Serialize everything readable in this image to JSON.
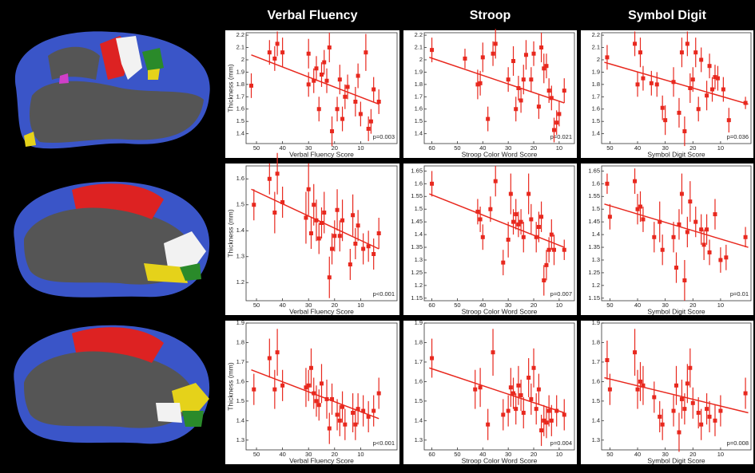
{
  "chart_data": [
    {
      "type": "scatter",
      "title": "Verbal Fluency",
      "xlabel": "Verbal Fluency Score",
      "ylabel": "Thickness (mm)",
      "color": "#e8281e",
      "x": [
        52,
        45,
        43,
        42,
        40,
        30,
        30,
        28,
        27,
        26,
        25,
        24,
        23,
        22,
        21,
        19,
        18,
        17,
        16,
        15,
        12,
        11,
        10,
        8,
        7,
        6,
        5,
        3
      ],
      "values": [
        1.79,
        2.06,
        2.01,
        2.13,
        2.06,
        2.05,
        1.8,
        1.83,
        1.93,
        1.6,
        1.88,
        1.98,
        1.83,
        2.1,
        1.42,
        1.6,
        1.84,
        1.52,
        1.7,
        1.78,
        1.66,
        1.87,
        1.56,
        2.06,
        1.44,
        1.5,
        1.76,
        1.66
      ],
      "errors": [
        0.1,
        0.1,
        0.1,
        0.1,
        0.12,
        0.12,
        0.1,
        0.1,
        0.1,
        0.1,
        0.1,
        0.1,
        0.1,
        0.12,
        0.12,
        0.1,
        0.12,
        0.1,
        0.1,
        0.1,
        0.12,
        0.1,
        0.1,
        0.15,
        0.1,
        0.1,
        0.1,
        0.1
      ],
      "trend": {
        "x": [
          52,
          3
        ],
        "y": [
          2.04,
          1.64
        ]
      },
      "annotation": "p=0.003",
      "xlim": [
        54,
        -4
      ],
      "ylim": [
        1.32,
        2.22
      ],
      "xticks": [
        50,
        40,
        30,
        20,
        10
      ],
      "yticks": [
        1.4,
        1.5,
        1.6,
        1.7,
        1.8,
        1.9,
        2,
        2.1,
        2.2
      ]
    },
    {
      "type": "scatter",
      "title": "Stroop",
      "xlabel": "Stroop Color Word Score",
      "color": "#e8281e",
      "x": [
        60,
        47,
        42,
        41,
        40,
        38,
        36,
        35,
        30,
        28,
        27,
        26,
        25,
        24,
        23,
        21,
        20,
        18,
        17,
        16,
        15,
        14,
        13,
        12,
        11,
        10,
        8
      ],
      "values": [
        2.08,
        2.01,
        1.8,
        1.81,
        2.02,
        1.52,
        2.05,
        2.13,
        1.84,
        1.99,
        1.6,
        1.77,
        1.67,
        1.84,
        2.04,
        1.84,
        2.05,
        1.62,
        2.1,
        1.93,
        1.95,
        1.75,
        1.69,
        1.43,
        1.49,
        1.56,
        1.75
      ],
      "errors": [
        0.1,
        0.08,
        0.12,
        0.1,
        0.12,
        0.1,
        0.1,
        0.12,
        0.1,
        0.12,
        0.1,
        0.1,
        0.1,
        0.12,
        0.12,
        0.1,
        0.1,
        0.1,
        0.12,
        0.12,
        0.1,
        0.1,
        0.1,
        0.1,
        0.1,
        0.1,
        0.1
      ],
      "trend": {
        "x": [
          61,
          8
        ],
        "y": [
          2.02,
          1.65
        ]
      },
      "annotation": "p=0.021",
      "xlim": [
        63,
        4
      ],
      "ylim": [
        1.32,
        2.22
      ],
      "xticks": [
        60,
        50,
        40,
        30,
        20,
        10
      ],
      "yticks": [
        1.4,
        1.5,
        1.6,
        1.7,
        1.8,
        1.9,
        2,
        2.1,
        2.2
      ]
    },
    {
      "type": "scatter",
      "title": "Symbol Digit",
      "xlabel": "Symbol Digit Score",
      "color": "#e8281e",
      "x": [
        51,
        41,
        40,
        39,
        38,
        35,
        33,
        31,
        30,
        27,
        25,
        24,
        23,
        22,
        21,
        20,
        19,
        18,
        17,
        15,
        14,
        13,
        12,
        11,
        9,
        7,
        1
      ],
      "values": [
        2.02,
        2.13,
        1.8,
        2.06,
        1.85,
        1.81,
        1.8,
        1.61,
        1.51,
        1.82,
        1.57,
        2.06,
        1.42,
        2.13,
        1.77,
        1.84,
        2.06,
        1.6,
        2.0,
        1.71,
        1.95,
        1.76,
        1.86,
        1.85,
        1.76,
        1.51,
        1.65
      ],
      "errors": [
        0.1,
        0.1,
        0.1,
        0.12,
        0.1,
        0.1,
        0.1,
        0.1,
        0.12,
        0.12,
        0.12,
        0.12,
        0.12,
        0.1,
        0.12,
        0.1,
        0.12,
        0.1,
        0.1,
        0.12,
        0.1,
        0.1,
        0.1,
        0.1,
        0.1,
        0.1,
        0.05
      ],
      "trend": {
        "x": [
          52,
          0
        ],
        "y": [
          1.98,
          1.64
        ]
      },
      "annotation": "p=0.036",
      "xlim": [
        53,
        -1
      ],
      "ylim": [
        1.32,
        2.22
      ],
      "xticks": [
        50,
        40,
        30,
        20,
        10
      ],
      "yticks": [
        1.4,
        1.5,
        1.6,
        1.7,
        1.8,
        1.9,
        2,
        2.1,
        2.2
      ]
    },
    {
      "type": "scatter",
      "xlabel": "Verbal Fluency Score",
      "ylabel": "Thickness (mm)",
      "color": "#e8281e",
      "x": [
        51,
        45,
        43,
        42,
        40,
        31,
        30,
        29,
        28,
        27,
        26,
        25,
        24,
        22,
        21,
        20,
        19,
        18,
        17,
        14,
        13,
        12,
        11,
        9,
        7,
        5,
        3
      ],
      "values": [
        1.5,
        1.6,
        1.47,
        1.62,
        1.51,
        1.45,
        1.56,
        1.39,
        1.5,
        1.44,
        1.37,
        1.43,
        1.47,
        1.22,
        1.33,
        1.38,
        1.48,
        1.38,
        1.44,
        1.27,
        1.46,
        1.35,
        1.42,
        1.33,
        1.34,
        1.31,
        1.39
      ],
      "errors": [
        0.06,
        0.06,
        0.08,
        0.08,
        0.06,
        0.1,
        0.1,
        0.06,
        0.08,
        0.08,
        0.06,
        0.06,
        0.08,
        0.08,
        0.06,
        0.06,
        0.08,
        0.06,
        0.08,
        0.06,
        0.08,
        0.06,
        0.06,
        0.06,
        0.06,
        0.06,
        0.06
      ],
      "trend": {
        "x": [
          52,
          3
        ],
        "y": [
          1.56,
          1.33
        ]
      },
      "annotation": "p<0.001",
      "xlim": [
        54,
        -4
      ],
      "ylim": [
        1.13,
        1.65
      ],
      "xticks": [
        50,
        40,
        30,
        20,
        10
      ],
      "yticks": [
        1.2,
        1.3,
        1.4,
        1.5,
        1.6
      ]
    },
    {
      "type": "scatter",
      "xlabel": "Stroop Color Word Score",
      "color": "#e8281e",
      "x": [
        60,
        42,
        41,
        40,
        37,
        35,
        32,
        30,
        29,
        28,
        27,
        26,
        25,
        24,
        22,
        21,
        19,
        18,
        17,
        16,
        15,
        14,
        13,
        12,
        8
      ],
      "values": [
        1.6,
        1.49,
        1.46,
        1.39,
        1.5,
        1.61,
        1.29,
        1.38,
        1.56,
        1.45,
        1.48,
        1.44,
        1.45,
        1.39,
        1.56,
        1.46,
        1.39,
        1.43,
        1.47,
        1.22,
        1.28,
        1.34,
        1.4,
        1.34,
        1.34
      ],
      "errors": [
        0.05,
        0.05,
        0.05,
        0.05,
        0.05,
        0.06,
        0.05,
        0.07,
        0.08,
        0.05,
        0.06,
        0.05,
        0.05,
        0.06,
        0.08,
        0.06,
        0.06,
        0.06,
        0.06,
        0.06,
        0.06,
        0.05,
        0.06,
        0.06,
        0.04
      ],
      "trend": {
        "x": [
          61,
          8
        ],
        "y": [
          1.56,
          1.35
        ]
      },
      "annotation": "p=0.007",
      "xlim": [
        63,
        4
      ],
      "ylim": [
        1.14,
        1.67
      ],
      "xticks": [
        60,
        50,
        40,
        30,
        20,
        10
      ],
      "yticks": [
        1.15,
        1.2,
        1.25,
        1.3,
        1.35,
        1.4,
        1.45,
        1.5,
        1.55,
        1.6,
        1.65
      ]
    },
    {
      "type": "scatter",
      "xlabel": "Symbol Digit Score",
      "color": "#e8281e",
      "x": [
        51,
        50,
        41,
        40,
        39,
        38,
        34,
        32,
        31,
        27,
        26,
        25,
        24,
        23,
        22,
        21,
        19,
        17,
        16,
        15,
        14,
        12,
        10,
        8,
        1
      ],
      "values": [
        1.6,
        1.47,
        1.61,
        1.5,
        1.51,
        1.46,
        1.39,
        1.45,
        1.34,
        1.39,
        1.27,
        1.44,
        1.56,
        1.22,
        1.41,
        1.53,
        1.45,
        1.42,
        1.36,
        1.42,
        1.33,
        1.48,
        1.3,
        1.31,
        1.39
      ],
      "errors": [
        0.04,
        0.05,
        0.05,
        0.06,
        0.06,
        0.05,
        0.06,
        0.08,
        0.06,
        0.06,
        0.06,
        0.06,
        0.08,
        0.08,
        0.06,
        0.08,
        0.06,
        0.06,
        0.06,
        0.06,
        0.05,
        0.06,
        0.05,
        0.05,
        0.04
      ],
      "trend": {
        "x": [
          52,
          0
        ],
        "y": [
          1.52,
          1.35
        ]
      },
      "annotation": "p=0.01",
      "xlim": [
        53,
        -1
      ],
      "ylim": [
        1.14,
        1.67
      ],
      "xticks": [
        50,
        40,
        30,
        20,
        10
      ],
      "yticks": [
        1.15,
        1.2,
        1.25,
        1.3,
        1.35,
        1.4,
        1.45,
        1.5,
        1.55,
        1.6,
        1.65
      ]
    },
    {
      "type": "scatter",
      "xlabel": "Verbal Fluency Score",
      "ylabel": "Thickness (mm)",
      "color": "#e8281e",
      "x": [
        51,
        45,
        43,
        42,
        40,
        31,
        30,
        29,
        28,
        27,
        26,
        25,
        23,
        22,
        21,
        19,
        18,
        17,
        16,
        13,
        12,
        11,
        9,
        7,
        5,
        3
      ],
      "values": [
        1.56,
        1.72,
        1.56,
        1.75,
        1.58,
        1.57,
        1.58,
        1.67,
        1.54,
        1.5,
        1.48,
        1.59,
        1.51,
        1.36,
        1.51,
        1.43,
        1.4,
        1.47,
        1.38,
        1.44,
        1.38,
        1.46,
        1.45,
        1.42,
        1.45,
        1.54
      ],
      "errors": [
        0.08,
        0.1,
        0.1,
        0.12,
        0.08,
        0.1,
        0.08,
        0.1,
        0.08,
        0.08,
        0.08,
        0.1,
        0.1,
        0.08,
        0.08,
        0.08,
        0.08,
        0.08,
        0.08,
        0.1,
        0.08,
        0.08,
        0.08,
        0.08,
        0.08,
        0.08
      ],
      "trend": {
        "x": [
          52,
          3
        ],
        "y": [
          1.66,
          1.41
        ]
      },
      "annotation": "p<0.001",
      "xlim": [
        54,
        -4
      ],
      "ylim": [
        1.25,
        1.9
      ],
      "xticks": [
        50,
        40,
        30,
        20,
        10
      ],
      "yticks": [
        1.3,
        1.4,
        1.5,
        1.6,
        1.7,
        1.8,
        1.9
      ]
    },
    {
      "type": "scatter",
      "xlabel": "Stroop Color Word Score",
      "color": "#e8281e",
      "x": [
        60,
        43,
        41,
        38,
        36,
        32,
        30,
        29,
        28,
        27,
        26,
        25,
        24,
        22,
        21,
        20,
        19,
        18,
        17,
        16,
        15,
        14,
        13,
        11,
        8
      ],
      "values": [
        1.72,
        1.56,
        1.57,
        1.38,
        1.75,
        1.43,
        1.45,
        1.57,
        1.54,
        1.46,
        1.58,
        1.53,
        1.44,
        1.62,
        1.51,
        1.67,
        1.46,
        1.56,
        1.35,
        1.4,
        1.39,
        1.45,
        1.4,
        1.45,
        1.43
      ],
      "errors": [
        0.1,
        0.1,
        0.1,
        0.08,
        0.12,
        0.08,
        0.08,
        0.1,
        0.08,
        0.08,
        0.1,
        0.08,
        0.08,
        0.1,
        0.08,
        0.1,
        0.08,
        0.08,
        0.08,
        0.08,
        0.08,
        0.08,
        0.08,
        0.08,
        0.08
      ],
      "trend": {
        "x": [
          61,
          8
        ],
        "y": [
          1.67,
          1.44
        ]
      },
      "annotation": "p=0.004",
      "xlim": [
        63,
        4
      ],
      "ylim": [
        1.25,
        1.9
      ],
      "xticks": [
        60,
        50,
        40,
        30,
        20,
        10
      ],
      "yticks": [
        1.3,
        1.4,
        1.5,
        1.6,
        1.7,
        1.8,
        1.9
      ]
    },
    {
      "type": "scatter",
      "xlabel": "Symbol Digit Score",
      "color": "#e8281e",
      "x": [
        51,
        50,
        41,
        40,
        39,
        38,
        34,
        32,
        31,
        27,
        26,
        25,
        24,
        23,
        22,
        21,
        20,
        18,
        17,
        15,
        14,
        12,
        10,
        1
      ],
      "values": [
        1.71,
        1.56,
        1.75,
        1.56,
        1.6,
        1.58,
        1.52,
        1.42,
        1.38,
        1.45,
        1.58,
        1.34,
        1.51,
        1.46,
        1.59,
        1.67,
        1.49,
        1.44,
        1.38,
        1.46,
        1.42,
        1.4,
        1.45,
        1.54
      ],
      "errors": [
        0.1,
        0.08,
        0.12,
        0.1,
        0.1,
        0.1,
        0.08,
        0.08,
        0.08,
        0.08,
        0.1,
        0.1,
        0.1,
        0.08,
        0.1,
        0.1,
        0.08,
        0.08,
        0.08,
        0.08,
        0.08,
        0.08,
        0.08,
        0.08
      ],
      "trend": {
        "x": [
          52,
          0
        ],
        "y": [
          1.62,
          1.44
        ]
      },
      "annotation": "p=0.008",
      "xlim": [
        53,
        -1
      ],
      "ylim": [
        1.25,
        1.9
      ],
      "xticks": [
        50,
        40,
        30,
        20,
        10
      ],
      "yticks": [
        1.3,
        1.4,
        1.5,
        1.6,
        1.7,
        1.8,
        1.9
      ]
    }
  ]
}
